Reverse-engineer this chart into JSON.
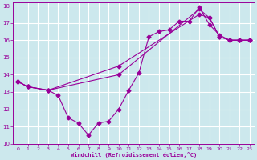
{
  "xlabel": "Windchill (Refroidissement éolien,°C)",
  "xlim": [
    -0.5,
    23.5
  ],
  "ylim": [
    10,
    18.2
  ],
  "yticks": [
    10,
    11,
    12,
    13,
    14,
    15,
    16,
    17,
    18
  ],
  "xticks": [
    0,
    1,
    2,
    3,
    4,
    5,
    6,
    7,
    8,
    9,
    10,
    11,
    12,
    13,
    14,
    15,
    16,
    17,
    18,
    19,
    20,
    21,
    22,
    23
  ],
  "bg_color": "#cce8ed",
  "line_color": "#990099",
  "grid_color": "#ffffff",
  "line1_x": [
    0,
    1,
    3,
    4,
    5,
    6,
    7,
    8,
    9,
    10,
    11,
    12,
    13,
    14,
    15,
    16,
    17,
    18,
    19,
    20,
    21,
    22,
    23
  ],
  "line1_y": [
    13.6,
    13.3,
    13.1,
    12.8,
    11.5,
    11.2,
    10.5,
    11.2,
    11.3,
    12.0,
    13.1,
    14.1,
    16.2,
    16.5,
    16.6,
    17.1,
    17.1,
    17.9,
    16.9,
    16.3,
    16.0,
    16.0,
    16.0
  ],
  "line2_x": [
    0,
    1,
    3,
    10,
    18,
    19,
    20,
    21,
    22,
    23
  ],
  "line2_y": [
    13.6,
    13.3,
    13.1,
    14.5,
    17.5,
    17.3,
    16.2,
    16.0,
    16.0,
    16.0
  ],
  "line3_x": [
    0,
    1,
    3,
    10,
    18,
    19,
    20,
    21,
    22,
    23
  ],
  "line3_y": [
    13.6,
    13.3,
    13.1,
    14.0,
    17.8,
    17.3,
    16.2,
    16.0,
    16.0,
    16.0
  ]
}
